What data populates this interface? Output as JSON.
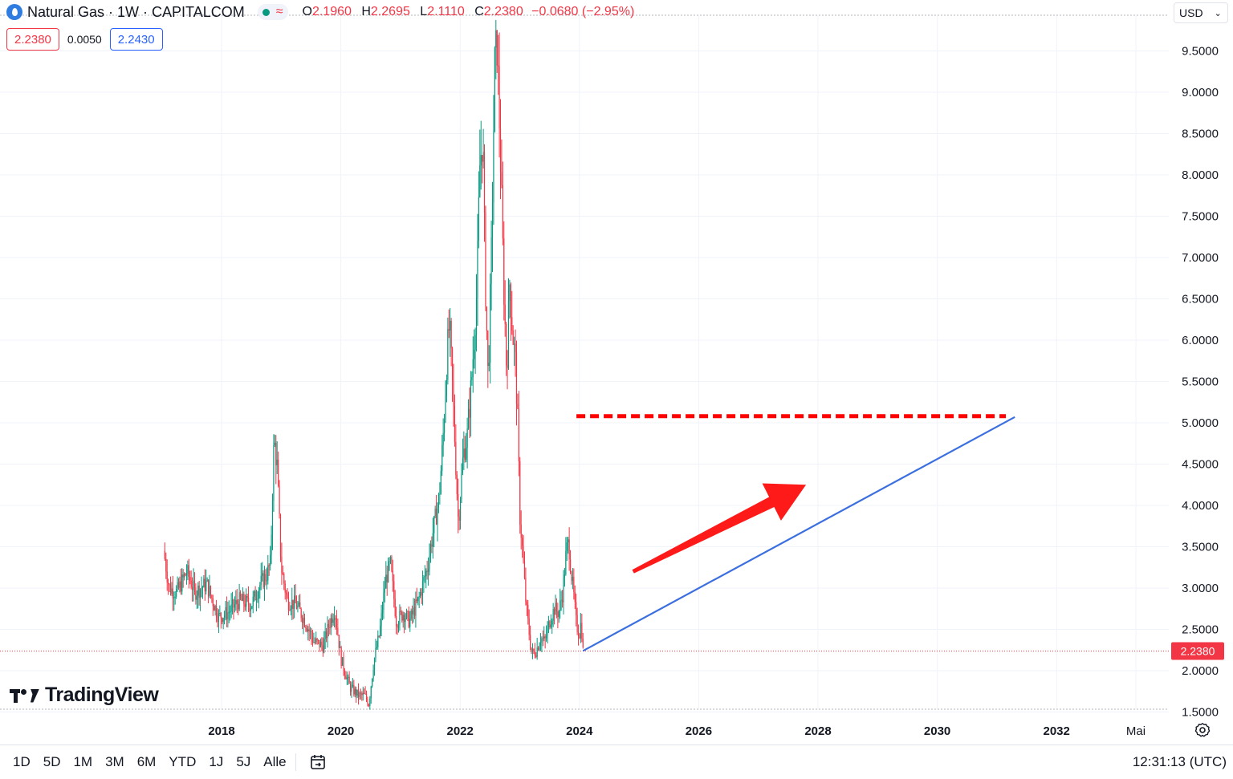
{
  "header": {
    "symbol_title": "Natural Gas · 1W · CAPITALCOM",
    "status_icon": "wave-icon",
    "ohlc": [
      {
        "key": "O",
        "value": "2.1960"
      },
      {
        "key": "H",
        "value": "2.2695"
      },
      {
        "key": "L",
        "value": "2.1110"
      },
      {
        "key": "C",
        "value": "2.2380"
      }
    ],
    "change": "−0.0680 (−2.95%)"
  },
  "quotes": {
    "sell": "2.2380",
    "spread": "0.0050",
    "buy": "2.2430"
  },
  "currency": "USD",
  "branding": "TradingView",
  "toolbar": {
    "ranges": [
      "1D",
      "5D",
      "1M",
      "3M",
      "6M",
      "YTD",
      "1J",
      "5J",
      "Alle"
    ],
    "clock": "12:31:13 (UTC)"
  },
  "colors": {
    "up": "#089981",
    "down": "#f23645",
    "trendline": "#3b6fe0",
    "resistance": "#ff0000",
    "arrow": "#ff1a1a"
  },
  "chart_data": {
    "type": "candlestick",
    "title": "Natural Gas · 1W · CAPITALCOM",
    "ylim": [
      1.5,
      9.8
    ],
    "y_ticks": [
      "1.5000",
      "2.0000",
      "2.5000",
      "3.0000",
      "3.5000",
      "4.0000",
      "4.5000",
      "5.0000",
      "5.5000",
      "6.0000",
      "6.5000",
      "7.0000",
      "7.5000",
      "8.0000",
      "8.5000",
      "9.0000",
      "9.5000"
    ],
    "x_ticks": [
      {
        "label": "2018",
        "t": 2018.0
      },
      {
        "label": "2020",
        "t": 2020.0
      },
      {
        "label": "2022",
        "t": 2022.0
      },
      {
        "label": "2024",
        "t": 2024.0
      },
      {
        "label": "2026",
        "t": 2026.0
      },
      {
        "label": "2028",
        "t": 2028.0
      },
      {
        "label": "2030",
        "t": 2030.0
      },
      {
        "label": "2032",
        "t": 2032.0
      },
      {
        "label": "Mai",
        "t": 2033.33
      }
    ],
    "last_price": "2.2380",
    "price_path": [
      [
        2017.03,
        3.45
      ],
      [
        2017.12,
        3.0
      ],
      [
        2017.25,
        2.95
      ],
      [
        2017.42,
        3.2
      ],
      [
        2017.55,
        2.95
      ],
      [
        2017.75,
        3.05
      ],
      [
        2017.95,
        2.65
      ],
      [
        2018.1,
        2.7
      ],
      [
        2018.3,
        2.85
      ],
      [
        2018.5,
        2.8
      ],
      [
        2018.65,
        3.05
      ],
      [
        2018.75,
        3.15
      ],
      [
        2018.82,
        3.3
      ],
      [
        2018.88,
        4.8
      ],
      [
        2018.93,
        4.5
      ],
      [
        2019.0,
        3.25
      ],
      [
        2019.1,
        2.85
      ],
      [
        2019.25,
        2.8
      ],
      [
        2019.4,
        2.6
      ],
      [
        2019.55,
        2.35
      ],
      [
        2019.7,
        2.3
      ],
      [
        2019.8,
        2.55
      ],
      [
        2019.9,
        2.75
      ],
      [
        2020.0,
        2.15
      ],
      [
        2020.15,
        1.8
      ],
      [
        2020.3,
        1.7
      ],
      [
        2020.4,
        1.7
      ],
      [
        2020.47,
        1.6
      ],
      [
        2020.55,
        2.1
      ],
      [
        2020.65,
        2.45
      ],
      [
        2020.75,
        3.1
      ],
      [
        2020.83,
        3.3
      ],
      [
        2020.93,
        2.6
      ],
      [
        2021.05,
        2.7
      ],
      [
        2021.15,
        2.6
      ],
      [
        2021.3,
        2.85
      ],
      [
        2021.45,
        3.25
      ],
      [
        2021.55,
        3.7
      ],
      [
        2021.65,
        4.1
      ],
      [
        2021.72,
        4.9
      ],
      [
        2021.78,
        5.8
      ],
      [
        2021.82,
        6.2
      ],
      [
        2021.88,
        5.3
      ],
      [
        2021.97,
        3.8
      ],
      [
        2022.05,
        4.6
      ],
      [
        2022.12,
        4.85
      ],
      [
        2022.2,
        5.6
      ],
      [
        2022.28,
        6.6
      ],
      [
        2022.33,
        8.1
      ],
      [
        2022.38,
        8.5
      ],
      [
        2022.42,
        6.8
      ],
      [
        2022.47,
        5.5
      ],
      [
        2022.52,
        6.9
      ],
      [
        2022.58,
        9.3
      ],
      [
        2022.62,
        9.6
      ],
      [
        2022.68,
        8.1
      ],
      [
        2022.73,
        6.7
      ],
      [
        2022.78,
        5.6
      ],
      [
        2022.83,
        6.7
      ],
      [
        2022.88,
        6.1
      ],
      [
        2022.93,
        5.7
      ],
      [
        2022.97,
        4.9
      ],
      [
        2023.0,
        3.9
      ],
      [
        2023.05,
        3.4
      ],
      [
        2023.1,
        2.85
      ],
      [
        2023.15,
        2.5
      ],
      [
        2023.2,
        2.2
      ],
      [
        2023.28,
        2.25
      ],
      [
        2023.35,
        2.4
      ],
      [
        2023.42,
        2.35
      ],
      [
        2023.5,
        2.6
      ],
      [
        2023.58,
        2.75
      ],
      [
        2023.65,
        2.7
      ],
      [
        2023.72,
        2.95
      ],
      [
        2023.78,
        3.45
      ],
      [
        2023.82,
        3.55
      ],
      [
        2023.86,
        3.2
      ],
      [
        2023.9,
        2.95
      ],
      [
        2023.95,
        2.55
      ],
      [
        2024.0,
        2.45
      ],
      [
        2024.03,
        2.6
      ],
      [
        2024.06,
        2.24
      ]
    ],
    "drawings": {
      "resistance_line": {
        "from": [
          2023.95,
          5.08
        ],
        "to": [
          2031.15,
          5.08
        ],
        "style": "dashed"
      },
      "trendline": {
        "from": [
          2024.06,
          2.24
        ],
        "to": [
          2031.3,
          5.07
        ]
      },
      "arrow": {
        "from": [
          2024.9,
          3.2
        ],
        "to": [
          2027.8,
          4.25
        ]
      }
    }
  }
}
